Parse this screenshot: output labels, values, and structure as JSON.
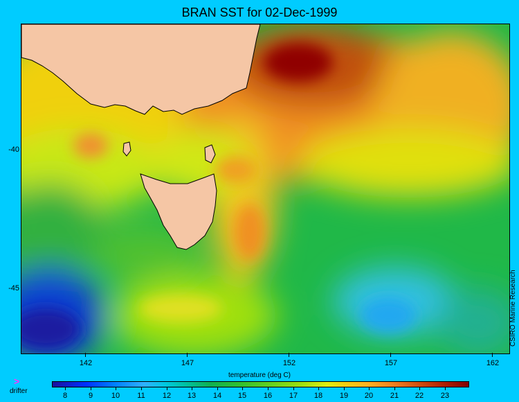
{
  "title": "BRAN SST for 02-Dec-1999",
  "axis": {
    "latitude_labels": [
      {
        "text": "-40",
        "lat": -40
      },
      {
        "text": "-45",
        "lat": -45
      }
    ],
    "longitude_labels": [
      {
        "text": "142",
        "lon": 142
      },
      {
        "text": "147",
        "lon": 147
      },
      {
        "text": "152",
        "lon": 152
      },
      {
        "text": "157",
        "lon": 157
      },
      {
        "text": "162",
        "lon": 162
      }
    ],
    "x_title": "temperature (deg C)"
  },
  "credit": "CSIRO Marine Research",
  "legend": {
    "drifter_symbol": ">",
    "drifter_label": "drifter"
  },
  "colorbar": {
    "min": 7.5,
    "max": 23.9,
    "labels": [
      "8",
      "9",
      "10",
      "11",
      "12",
      "13",
      "14",
      "15",
      "16",
      "17",
      "18",
      "19",
      "20",
      "21",
      "22",
      "23"
    ]
  },
  "colors": {
    "background": "#00ccff",
    "land": "#f5c6a5",
    "coastline": "#000000",
    "drifter": "#ff33ff"
  }
}
